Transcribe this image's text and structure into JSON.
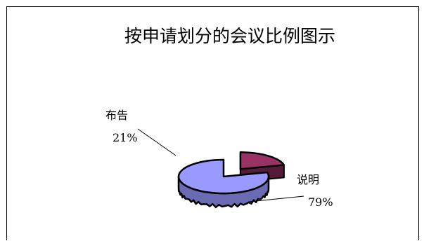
{
  "chart_data": {
    "type": "pie",
    "title": "按申请划分的会议比例图示",
    "slices": [
      {
        "label": "布告",
        "value": 21,
        "value_label": "21%",
        "color": "#993366",
        "exploded": true
      },
      {
        "label": "说明",
        "value": 79,
        "value_label": "79%",
        "color": "#9999ff",
        "exploded": false
      }
    ],
    "three_d": true,
    "legend": "none"
  }
}
